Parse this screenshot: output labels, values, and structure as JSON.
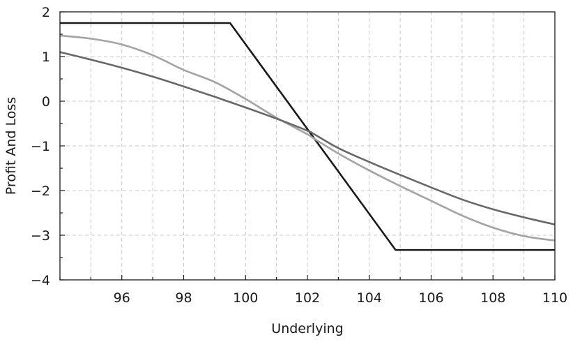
{
  "chart_data": {
    "type": "line",
    "title": "",
    "xlabel": "Underlying",
    "ylabel": "Profit And Loss",
    "xlim": [
      94,
      110
    ],
    "ylim": [
      -4,
      2
    ],
    "xticks": [
      96,
      98,
      100,
      102,
      104,
      106,
      108,
      110
    ],
    "yticks": [
      -4,
      -3,
      -2,
      -1,
      0,
      1,
      2
    ],
    "ytick_labels": [
      "−4",
      "−3",
      "−2",
      "−1",
      "0",
      "1",
      "2"
    ],
    "grid": true,
    "legend": "none",
    "series": [
      {
        "color": "#1a1a1a",
        "x": [
          94,
          99.5,
          104.85,
          110
        ],
        "y": [
          1.75,
          1.75,
          -3.33,
          -3.33
        ]
      },
      {
        "color": "#a3a3a3",
        "x": [
          94,
          95,
          96,
          97,
          98,
          99,
          100,
          101,
          102,
          102.2,
          103,
          104,
          105,
          106,
          107,
          108,
          109,
          110
        ],
        "y": [
          1.47,
          1.4,
          1.27,
          1.03,
          0.7,
          0.43,
          0.05,
          -0.37,
          -0.74,
          -0.83,
          -1.17,
          -1.55,
          -1.9,
          -2.23,
          -2.56,
          -2.83,
          -3.02,
          -3.12
        ]
      },
      {
        "color": "#686868",
        "x": [
          94,
          95,
          96,
          97,
          98,
          99,
          100,
          101,
          102,
          102.2,
          103,
          104,
          105,
          106,
          107,
          108,
          109,
          110
        ],
        "y": [
          1.1,
          0.93,
          0.75,
          0.55,
          0.33,
          0.1,
          -0.14,
          -0.39,
          -0.66,
          -0.73,
          -1.05,
          -1.36,
          -1.65,
          -1.93,
          -2.2,
          -2.42,
          -2.6,
          -2.76
        ]
      }
    ]
  }
}
